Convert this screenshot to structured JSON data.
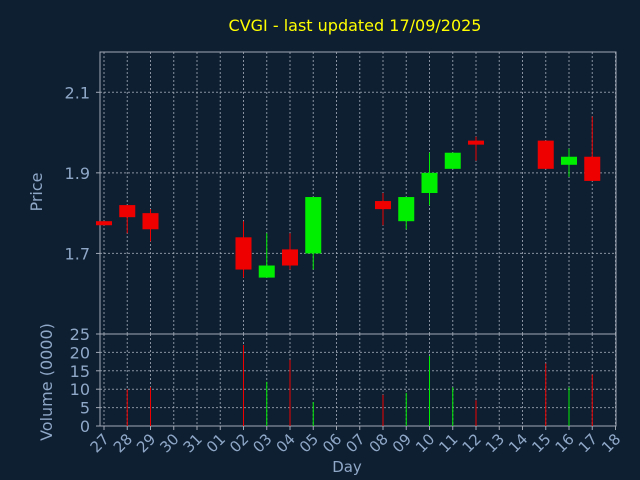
{
  "chart_data": {
    "type": "candlestick",
    "title": "CVGI - last updated 17/09/2025",
    "xlabel": "Day",
    "price_panel": {
      "ylabel": "Price",
      "yticks": [
        "1.7",
        "1.9",
        "2.1"
      ],
      "tick_values": [
        1.7,
        1.9,
        2.1
      ],
      "ylim": [
        1.5,
        2.2
      ],
      "grid": true
    },
    "volume_panel": {
      "ylabel": "Volume (0000)",
      "yticks": [
        "0",
        "5",
        "10",
        "15",
        "20",
        "25"
      ],
      "tick_values": [
        0,
        5,
        10,
        15,
        20,
        25
      ],
      "ylim": [
        0,
        25
      ],
      "grid": true
    },
    "x_ticks": [
      "27",
      "28",
      "29",
      "30",
      "31",
      "01",
      "02",
      "03",
      "04",
      "05",
      "06",
      "07",
      "08",
      "09",
      "10",
      "11",
      "12",
      "13",
      "14",
      "15",
      "16",
      "17",
      "18"
    ],
    "candles": [
      {
        "day": "27",
        "open": 1.78,
        "high": 1.78,
        "low": 1.77,
        "close": 1.77,
        "volume": 0
      },
      {
        "day": "28",
        "open": 1.82,
        "high": 1.82,
        "low": 1.75,
        "close": 1.79,
        "volume": 10
      },
      {
        "day": "29",
        "open": 1.8,
        "high": 1.81,
        "low": 1.73,
        "close": 1.76,
        "volume": 10.5
      },
      {
        "day": "02",
        "open": 1.74,
        "high": 1.78,
        "low": 1.64,
        "close": 1.66,
        "volume": 22
      },
      {
        "day": "03",
        "open": 1.64,
        "high": 1.75,
        "low": 1.64,
        "close": 1.67,
        "volume": 12
      },
      {
        "day": "04",
        "open": 1.71,
        "high": 1.75,
        "low": 1.66,
        "close": 1.67,
        "volume": 18
      },
      {
        "day": "05",
        "open": 1.7,
        "high": 1.84,
        "low": 1.66,
        "close": 1.84,
        "volume": 6.5
      },
      {
        "day": "08",
        "open": 1.83,
        "high": 1.85,
        "low": 1.77,
        "close": 1.81,
        "volume": 8.5
      },
      {
        "day": "09",
        "open": 1.78,
        "high": 1.84,
        "low": 1.76,
        "close": 1.84,
        "volume": 9
      },
      {
        "day": "10",
        "open": 1.85,
        "high": 1.95,
        "low": 1.82,
        "close": 1.9,
        "volume": 19
      },
      {
        "day": "11",
        "open": 1.91,
        "high": 1.95,
        "low": 1.91,
        "close": 1.95,
        "volume": 10.5
      },
      {
        "day": "12",
        "open": 1.98,
        "high": 1.99,
        "low": 1.93,
        "close": 1.97,
        "volume": 7
      },
      {
        "day": "15",
        "open": 1.98,
        "high": 1.98,
        "low": 1.91,
        "close": 1.91,
        "volume": 17
      },
      {
        "day": "16",
        "open": 1.92,
        "high": 1.96,
        "low": 1.89,
        "close": 1.94,
        "volume": 10.5
      },
      {
        "day": "17",
        "open": 1.94,
        "high": 2.04,
        "low": 1.88,
        "close": 1.88,
        "volume": 14
      }
    ],
    "colors": {
      "background": "#0f1f32",
      "up": "#00ee00",
      "down": "#ee0000",
      "title": "#ffff00",
      "axis_text": "#8fa8c8",
      "grid": "#b0b8c4",
      "frame": "#a0a8b4"
    }
  }
}
